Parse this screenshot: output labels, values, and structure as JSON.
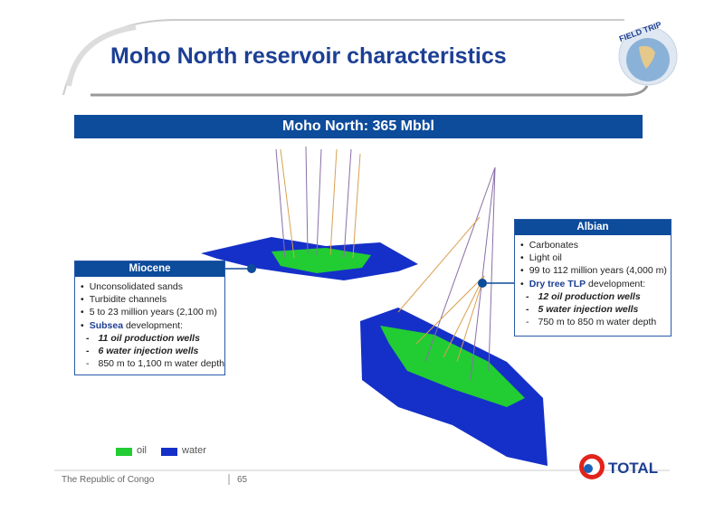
{
  "header": {
    "title": "Moho North reservoir characteristics",
    "badge": "FIELD TRIP"
  },
  "banner": "Moho North: 365 Mbbl",
  "miocene": {
    "title": "Miocene",
    "items": [
      "Unconsolidated sands",
      "Turbidite channels",
      "5 to 23 million years (2,100 m)"
    ],
    "development": {
      "emphasis": "Subsea",
      "text": " development:"
    },
    "sub_items": [
      "11 oil production wells",
      "6 water injection wells",
      "850 m to 1,100 m water depth"
    ]
  },
  "albian": {
    "title": "Albian",
    "items": [
      "Carbonates",
      "Light oil",
      "99 to 112 million years (4,000 m)"
    ],
    "development": {
      "emphasis": "Dry tree TLP",
      "text": " development:"
    },
    "sub_items": [
      "12 oil production wells",
      "5 water injection wells",
      "750 m to 850 m water depth"
    ]
  },
  "legend": [
    "oil",
    "water"
  ],
  "footer": {
    "text": "The Republic of Congo",
    "page": "65",
    "logo": "TOTAL"
  }
}
